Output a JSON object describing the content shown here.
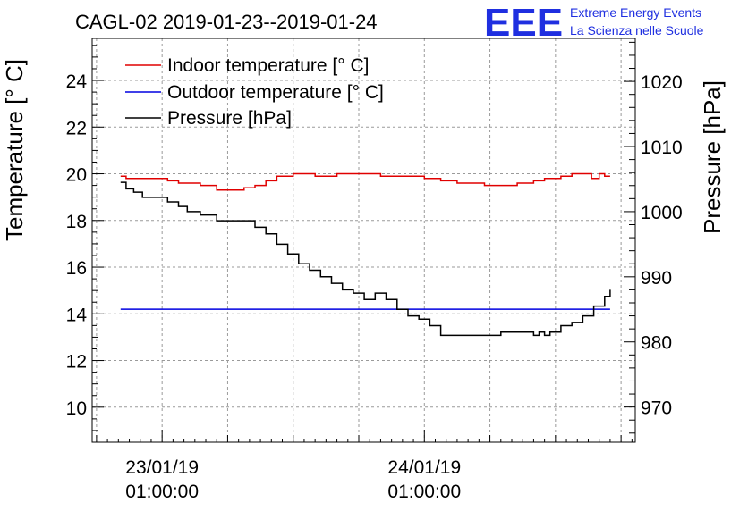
{
  "chart_data": {
    "type": "line",
    "title": "CAGL-02 2019-01-23--2019-01-24",
    "ylabel": "Temperature [° C]",
    "y2label": "Pressure [hPa]",
    "ylim": [
      8.5,
      25.8
    ],
    "y2lim": [
      964.6,
      1026.6
    ],
    "yticks": [
      10,
      12,
      14,
      16,
      18,
      20,
      22,
      24
    ],
    "y2ticks": [
      970,
      980,
      990,
      1000,
      1010,
      1020
    ],
    "xticks": [
      {
        "t": 1,
        "label1": "23/01/19",
        "label2": "01:00:00"
      },
      {
        "t": 25,
        "label1": "24/01/19",
        "label2": "01:00:00"
      }
    ],
    "xlim": [
      -5.4,
      44.3
    ],
    "grid": true,
    "legend_position": "top-left",
    "logo": {
      "letters": "EEE",
      "line1": "Extreme Energy Events",
      "line2": "La Scienza nelle Scuole",
      "color": "#1f2fe0"
    },
    "series": [
      {
        "name": "Indoor temperature [° C]",
        "axis": "left",
        "color": "#e00000",
        "x": [
          -2.8,
          -2.3,
          -1,
          0.5,
          1.5,
          2.5,
          4.5,
          6,
          7.5,
          8.5,
          9.5,
          10.5,
          11.5,
          13,
          15,
          17,
          19,
          21,
          23,
          25,
          26.5,
          28,
          29.5,
          30.5,
          32,
          33.5,
          35,
          36,
          37.5,
          38.5,
          39.5,
          40.3,
          41,
          41.5,
          42
        ],
        "y": [
          19.9,
          19.8,
          19.8,
          19.8,
          19.7,
          19.6,
          19.5,
          19.3,
          19.3,
          19.4,
          19.5,
          19.7,
          19.9,
          20.0,
          19.9,
          20.0,
          20.0,
          19.9,
          19.9,
          19.8,
          19.7,
          19.6,
          19.6,
          19.5,
          19.5,
          19.6,
          19.7,
          19.8,
          19.9,
          20.0,
          20.0,
          19.8,
          20.0,
          19.9,
          19.9
        ]
      },
      {
        "name": "Outdoor temperature [° C]",
        "axis": "left",
        "color": "#0000e0",
        "x": [
          -2.8,
          42
        ],
        "y": [
          14.2,
          14.2
        ]
      },
      {
        "name": "Pressure [hPa]",
        "axis": "right",
        "color": "#000000",
        "x": [
          -2.8,
          -2.3,
          -1.6,
          -0.8,
          0.5,
          1.5,
          2.5,
          3.3,
          4.5,
          6,
          7.5,
          8.5,
          9.5,
          10.5,
          11.5,
          12.5,
          13.5,
          14.5,
          15.5,
          16.5,
          17.5,
          18.5,
          19.5,
          20.5,
          21.5,
          22.5,
          23.5,
          24.5,
          25.5,
          26.5,
          27.5,
          28.5,
          30,
          32,
          33.5,
          34.5,
          35,
          35.5,
          36,
          36.5,
          37.5,
          38.5,
          39.5,
          40.5,
          41.5,
          42
        ],
        "y": [
          1004.5,
          1003.5,
          1003.0,
          1002.2,
          1002.2,
          1001.5,
          1000.8,
          1000.0,
          999.5,
          998.6,
          998.6,
          998.6,
          997.6,
          996.6,
          995.0,
          993.5,
          992.0,
          991.0,
          990.0,
          989.0,
          988.0,
          987.5,
          986.5,
          987.5,
          986.5,
          985.0,
          984.0,
          983.5,
          982.5,
          981.0,
          981.0,
          981.0,
          981.0,
          981.5,
          981.5,
          981.5,
          981.0,
          981.5,
          981.0,
          981.5,
          982.5,
          983.0,
          984.0,
          985.5,
          987.0,
          988.0
        ]
      }
    ]
  }
}
